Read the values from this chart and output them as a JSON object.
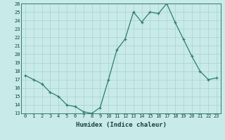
{
  "x": [
    0,
    1,
    2,
    3,
    4,
    5,
    6,
    7,
    8,
    9,
    10,
    11,
    12,
    13,
    14,
    15,
    16,
    17,
    18,
    19,
    20,
    21,
    22,
    23
  ],
  "y": [
    17.5,
    17.0,
    16.5,
    15.5,
    15.0,
    14.0,
    13.8,
    13.2,
    13.0,
    13.7,
    17.0,
    20.5,
    21.8,
    25.0,
    23.8,
    25.0,
    24.8,
    26.0,
    23.8,
    21.8,
    19.8,
    18.0,
    17.0,
    17.2
  ],
  "xlabel": "Humidex (Indice chaleur)",
  "line_color": "#2e7d6e",
  "marker_color": "#2e7d6e",
  "bg_color": "#c8eae8",
  "grid_color": "#9fcfcb",
  "axis_color": "#2e7d6e",
  "tick_label_color": "#1a4040",
  "xlim": [
    -0.5,
    23.5
  ],
  "ylim": [
    13,
    26
  ],
  "yticks": [
    13,
    14,
    15,
    16,
    17,
    18,
    19,
    20,
    21,
    22,
    23,
    24,
    25,
    26
  ],
  "xticks": [
    0,
    1,
    2,
    3,
    4,
    5,
    6,
    7,
    8,
    9,
    10,
    11,
    12,
    13,
    14,
    15,
    16,
    17,
    18,
    19,
    20,
    21,
    22,
    23
  ]
}
